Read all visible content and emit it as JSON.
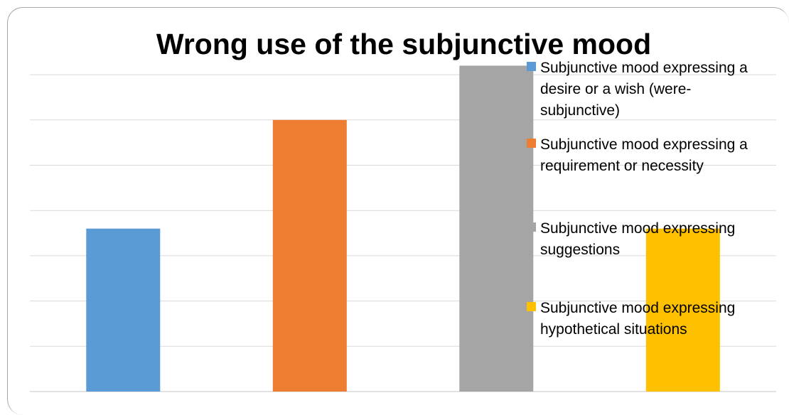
{
  "chart_data": {
    "type": "bar",
    "title": "Wrong use of the subjunctive mood",
    "xlabel": "",
    "ylabel": "",
    "ylim": [
      0,
      7
    ],
    "grid": true,
    "legend_position": "right",
    "categories": [
      "Subjunctive mood expressing a desire or a wish (were-subjunctive)",
      "Subjunctive mood expressing a requirement or necessity",
      "Subjunctive mood expressing suggestions",
      "Subjunctive mood expressing hypothetical situations"
    ],
    "values": [
      3.6,
      6,
      7.2,
      3.6
    ],
    "colors": [
      "#5b9bd5",
      "#ed7d31",
      "#a5a5a5",
      "#ffc000"
    ],
    "legend": [
      {
        "lines": [
          "Subjunctive mood expressing a",
          "desire or a wish (were-",
          "subjunctive)"
        ],
        "color": "#5b9bd5"
      },
      {
        "lines": [
          "Subjunctive mood expressing a",
          "requirement or necessity"
        ],
        "color": "#ed7d31"
      },
      {
        "lines": [
          "Subjunctive mood expressing",
          "suggestions"
        ],
        "color": "#a5a5a5"
      },
      {
        "lines": [
          "Subjunctive mood expressing",
          "hypothetical situations"
        ],
        "color": "#ffc000"
      }
    ]
  }
}
